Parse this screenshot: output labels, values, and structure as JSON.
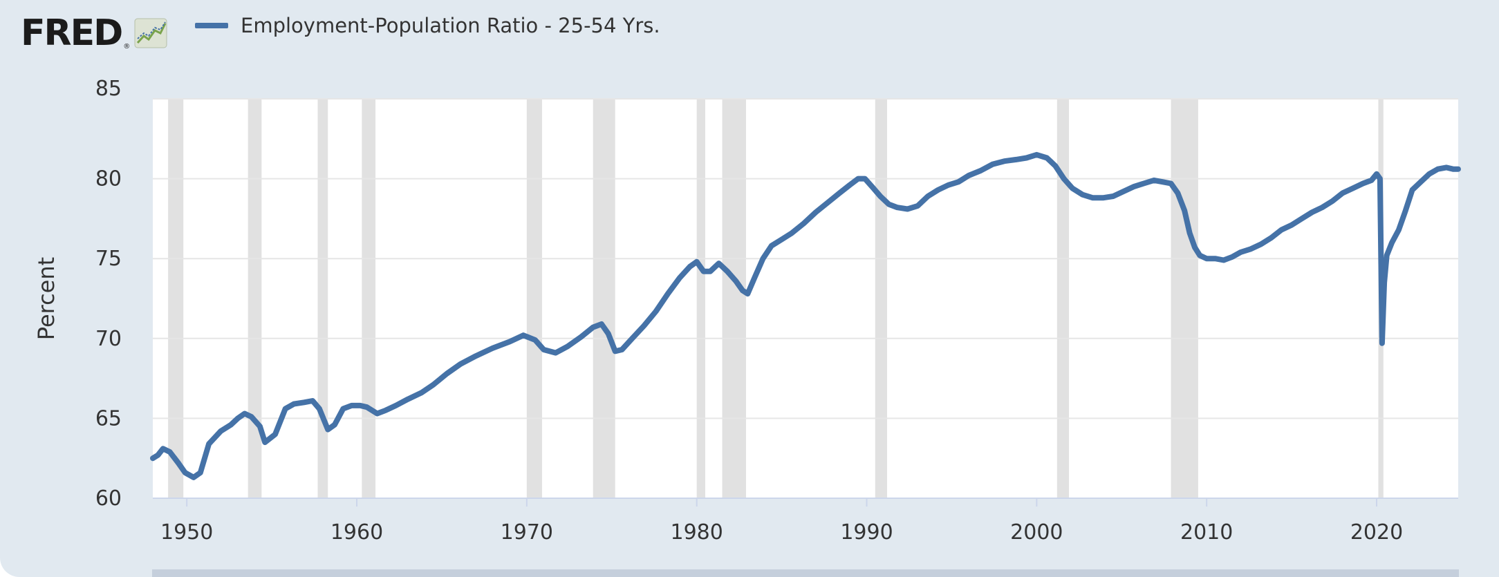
{
  "header": {
    "logo_text": "FRED",
    "logo_registered": "®",
    "logo_icon": "chart-line-icon"
  },
  "colors": {
    "background": "#e1e9f0",
    "plot": "#ffffff",
    "series": "#4572a7",
    "recession": "#e1e1e1",
    "grid": "#e6e6e6",
    "axis": "#ccd6eb",
    "navigator": "#c5cfdc"
  },
  "chart_data": {
    "type": "line",
    "title": "",
    "xlabel": "",
    "ylabel": "Percent",
    "xlim": [
      1948.0,
      2024.8
    ],
    "ylim": [
      60,
      85
    ],
    "yticks": [
      60,
      65,
      70,
      75,
      80,
      85
    ],
    "xticks": [
      1950,
      1960,
      1970,
      1980,
      1990,
      2000,
      2010,
      2020
    ],
    "grid": "horizontal",
    "legend_position": "top-left",
    "series": [
      {
        "name": "Employment-Population Ratio - 25-54 Yrs.",
        "x": [
          1948.0,
          1948.3,
          1948.6,
          1949.0,
          1949.5,
          1949.9,
          1950.4,
          1950.8,
          1951.3,
          1952.0,
          1952.6,
          1953.0,
          1953.4,
          1953.8,
          1954.3,
          1954.6,
          1955.2,
          1955.8,
          1956.3,
          1956.9,
          1957.4,
          1957.8,
          1958.3,
          1958.7,
          1959.2,
          1959.7,
          1960.2,
          1960.6,
          1961.2,
          1961.7,
          1962.3,
          1963.0,
          1963.8,
          1964.5,
          1965.3,
          1966.1,
          1967.0,
          1968.0,
          1969.0,
          1969.8,
          1970.5,
          1971.0,
          1971.7,
          1972.4,
          1973.2,
          1973.9,
          1974.4,
          1974.8,
          1975.2,
          1975.6,
          1976.2,
          1976.9,
          1977.6,
          1978.3,
          1979.0,
          1979.6,
          1980.0,
          1980.4,
          1980.8,
          1981.3,
          1981.8,
          1982.3,
          1982.7,
          1983.0,
          1983.4,
          1983.9,
          1984.4,
          1985.0,
          1985.6,
          1986.3,
          1987.0,
          1987.7,
          1988.4,
          1989.0,
          1989.5,
          1989.9,
          1990.4,
          1990.8,
          1991.3,
          1991.8,
          1992.4,
          1993.0,
          1993.6,
          1994.2,
          1994.8,
          1995.4,
          1996.0,
          1996.7,
          1997.4,
          1998.1,
          1998.8,
          1999.4,
          2000.0,
          2000.6,
          2001.1,
          2001.6,
          2002.1,
          2002.7,
          2003.3,
          2003.9,
          2004.5,
          2005.1,
          2005.7,
          2006.3,
          2006.9,
          2007.4,
          2007.9,
          2008.3,
          2008.7,
          2009.0,
          2009.3,
          2009.6,
          2010.0,
          2010.5,
          2011.0,
          2011.5,
          2012.0,
          2012.6,
          2013.2,
          2013.8,
          2014.4,
          2015.0,
          2015.6,
          2016.2,
          2016.8,
          2017.4,
          2018.0,
          2018.6,
          2019.2,
          2019.7,
          2020.0,
          2020.2,
          2020.32,
          2020.45,
          2020.6,
          2020.9,
          2021.3,
          2021.7,
          2022.1,
          2022.6,
          2023.1,
          2023.6,
          2024.1,
          2024.5,
          2024.8
        ],
        "values": [
          62.5,
          62.7,
          63.1,
          62.9,
          62.2,
          61.6,
          61.3,
          61.6,
          63.4,
          64.2,
          64.6,
          65.0,
          65.3,
          65.1,
          64.5,
          63.5,
          64.0,
          65.6,
          65.9,
          66.0,
          66.1,
          65.6,
          64.3,
          64.6,
          65.6,
          65.8,
          65.8,
          65.7,
          65.3,
          65.5,
          65.8,
          66.2,
          66.6,
          67.1,
          67.8,
          68.4,
          68.9,
          69.4,
          69.8,
          70.2,
          69.9,
          69.3,
          69.1,
          69.5,
          70.1,
          70.7,
          70.9,
          70.3,
          69.2,
          69.3,
          70.0,
          70.8,
          71.7,
          72.8,
          73.8,
          74.5,
          74.8,
          74.2,
          74.2,
          74.7,
          74.2,
          73.6,
          73.0,
          72.8,
          73.8,
          75.0,
          75.8,
          76.2,
          76.6,
          77.2,
          77.9,
          78.5,
          79.1,
          79.6,
          80.0,
          80.0,
          79.4,
          78.9,
          78.4,
          78.2,
          78.1,
          78.3,
          78.9,
          79.3,
          79.6,
          79.8,
          80.2,
          80.5,
          80.9,
          81.1,
          81.2,
          81.3,
          81.5,
          81.3,
          80.8,
          80.0,
          79.4,
          79.0,
          78.8,
          78.8,
          78.9,
          79.2,
          79.5,
          79.7,
          79.9,
          79.8,
          79.7,
          79.1,
          78.0,
          76.6,
          75.7,
          75.2,
          75.0,
          75.0,
          74.9,
          75.1,
          75.4,
          75.6,
          75.9,
          76.3,
          76.8,
          77.1,
          77.5,
          77.9,
          78.2,
          78.6,
          79.1,
          79.4,
          79.7,
          79.9,
          80.3,
          80.0,
          69.7,
          73.5,
          75.2,
          76.0,
          76.8,
          78.0,
          79.3,
          79.8,
          80.3,
          80.6,
          80.7,
          80.6,
          80.6
        ]
      }
    ],
    "recessions": [
      [
        1948.9,
        1949.8
      ],
      [
        1953.6,
        1954.4
      ],
      [
        1957.7,
        1958.3
      ],
      [
        1960.3,
        1961.1
      ],
      [
        1970.0,
        1970.9
      ],
      [
        1973.9,
        1975.2
      ],
      [
        1980.0,
        1980.5
      ],
      [
        1981.5,
        1982.9
      ],
      [
        1990.5,
        1991.2
      ],
      [
        2001.2,
        2001.9
      ],
      [
        2007.9,
        2009.5
      ],
      [
        2020.1,
        2020.4
      ]
    ]
  }
}
